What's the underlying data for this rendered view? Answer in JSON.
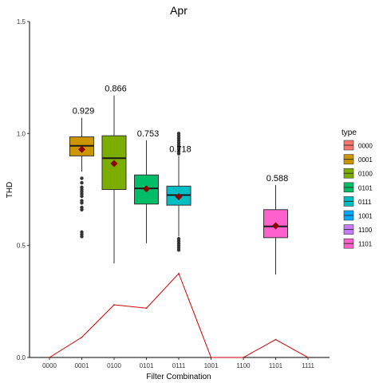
{
  "chart_data": {
    "type": "boxplot",
    "title": "Apr",
    "xlabel": "Filter Combination",
    "ylabel": "THD",
    "ylim": [
      0,
      1.5
    ],
    "yticks": [
      "0.0",
      "0.5",
      "1.0",
      "1.5"
    ],
    "categories": [
      "0000",
      "0001",
      "0100",
      "0101",
      "0111",
      "1001",
      "1100",
      "1101",
      "1111"
    ],
    "grid": false,
    "legend": {
      "title": "type",
      "placement": "right",
      "entries": [
        {
          "label": "0000",
          "color": "#f8766d"
        },
        {
          "label": "0001",
          "color": "#cd9600"
        },
        {
          "label": "0100",
          "color": "#7cae00"
        },
        {
          "label": "0101",
          "color": "#00be67"
        },
        {
          "label": "0111",
          "color": "#00bfc4"
        },
        {
          "label": "1001",
          "color": "#00a9ff"
        },
        {
          "label": "1100",
          "color": "#c77cff"
        },
        {
          "label": "1101",
          "color": "#ff61cc"
        }
      ]
    },
    "boxes": [
      {
        "category": "0001",
        "type": "0001",
        "color": "#cd9600",
        "whisker_low": 0.83,
        "q1": 0.9,
        "median": 0.945,
        "q3": 0.985,
        "whisker_high": 1.07,
        "mean": 0.929,
        "mean_label": "0.929",
        "outliers": [
          0.8,
          0.78,
          0.76,
          0.75,
          0.74,
          0.73,
          0.72,
          0.7,
          0.69,
          0.67,
          0.66,
          0.56,
          0.55,
          0.54
        ]
      },
      {
        "category": "0100",
        "type": "0100",
        "color": "#7cae00",
        "whisker_low": 0.42,
        "q1": 0.75,
        "median": 0.89,
        "q3": 0.99,
        "whisker_high": 1.17,
        "mean": 0.866,
        "mean_label": "0.866",
        "outliers": []
      },
      {
        "category": "0101",
        "type": "0101",
        "color": "#00be67",
        "whisker_low": 0.51,
        "q1": 0.685,
        "median": 0.755,
        "q3": 0.815,
        "whisker_high": 0.97,
        "mean": 0.753,
        "mean_label": "0.753",
        "outliers": []
      },
      {
        "category": "0111",
        "type": "0111",
        "color": "#00bfc4",
        "whisker_low": 0.54,
        "q1": 0.68,
        "median": 0.725,
        "q3": 0.765,
        "whisker_high": 0.9,
        "mean": 0.718,
        "mean_label": "0.718",
        "outliers": [
          1.0,
          0.99,
          0.98,
          0.97,
          0.96,
          0.95,
          0.94,
          0.93,
          0.92,
          0.91,
          0.53,
          0.52,
          0.51,
          0.5,
          0.49,
          0.48
        ]
      },
      {
        "category": "1101",
        "type": "1101",
        "color": "#ff61cc",
        "whisker_low": 0.37,
        "q1": 0.535,
        "median": 0.585,
        "q3": 0.66,
        "whisker_high": 0.77,
        "mean": 0.588,
        "mean_label": "0.588",
        "outliers": []
      }
    ],
    "line": {
      "color": "#cc0000",
      "x": [
        "0000",
        "0001",
        "0100",
        "0101",
        "0111",
        "1001",
        "1100",
        "1101",
        "1111"
      ],
      "y": [
        0.0,
        0.09,
        0.235,
        0.22,
        0.375,
        0.0,
        0.0,
        0.08,
        0.0
      ]
    }
  }
}
